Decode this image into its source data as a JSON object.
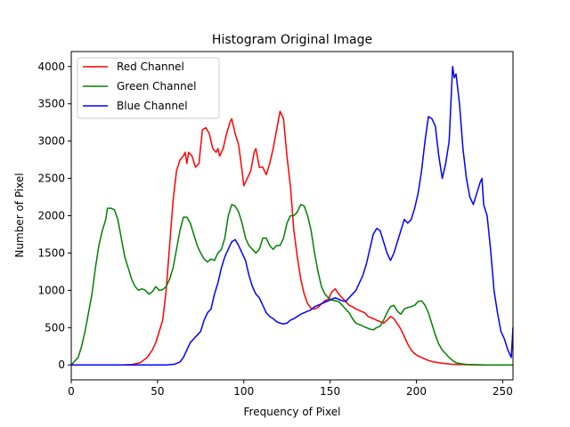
{
  "chart_data": {
    "type": "line",
    "title": "Histogram Original Image",
    "xlabel": "Frequency of Pixel",
    "ylabel": "Number of Pixel",
    "xlim": [
      0,
      256
    ],
    "ylim": [
      -200,
      4200
    ],
    "xticks": [
      0,
      50,
      100,
      150,
      200,
      250
    ],
    "yticks": [
      0,
      500,
      1000,
      1500,
      2000,
      2500,
      3000,
      3500,
      4000
    ],
    "grid": false,
    "legend_position": "top-left",
    "series": [
      {
        "name": "Red Channel",
        "color": "#ff0000",
        "points": [
          [
            0,
            0
          ],
          [
            10,
            0
          ],
          [
            20,
            0
          ],
          [
            30,
            0
          ],
          [
            35,
            5
          ],
          [
            40,
            30
          ],
          [
            44,
            100
          ],
          [
            47,
            200
          ],
          [
            49,
            300
          ],
          [
            51,
            450
          ],
          [
            53,
            600
          ],
          [
            55,
            1000
          ],
          [
            57,
            1600
          ],
          [
            59,
            2200
          ],
          [
            61,
            2600
          ],
          [
            63,
            2750
          ],
          [
            65,
            2800
          ],
          [
            66,
            2850
          ],
          [
            67,
            2700
          ],
          [
            68,
            2850
          ],
          [
            70,
            2800
          ],
          [
            72,
            2650
          ],
          [
            74,
            2700
          ],
          [
            76,
            3150
          ],
          [
            78,
            3180
          ],
          [
            80,
            3100
          ],
          [
            82,
            2900
          ],
          [
            84,
            2850
          ],
          [
            85,
            2900
          ],
          [
            86,
            2800
          ],
          [
            88,
            2900
          ],
          [
            90,
            3100
          ],
          [
            92,
            3250
          ],
          [
            93,
            3300
          ],
          [
            95,
            3100
          ],
          [
            97,
            2950
          ],
          [
            99,
            2600
          ],
          [
            100,
            2400
          ],
          [
            102,
            2500
          ],
          [
            104,
            2600
          ],
          [
            106,
            2850
          ],
          [
            107,
            2900
          ],
          [
            109,
            2650
          ],
          [
            111,
            2650
          ],
          [
            113,
            2550
          ],
          [
            115,
            2700
          ],
          [
            117,
            2900
          ],
          [
            119,
            3150
          ],
          [
            121,
            3400
          ],
          [
            123,
            3300
          ],
          [
            125,
            2800
          ],
          [
            127,
            2400
          ],
          [
            129,
            1800
          ],
          [
            131,
            1450
          ],
          [
            133,
            1150
          ],
          [
            135,
            950
          ],
          [
            137,
            820
          ],
          [
            139,
            760
          ],
          [
            141,
            750
          ],
          [
            143,
            770
          ],
          [
            145,
            820
          ],
          [
            147,
            860
          ],
          [
            149,
            880
          ],
          [
            151,
            980
          ],
          [
            153,
            1020
          ],
          [
            155,
            950
          ],
          [
            157,
            900
          ],
          [
            159,
            850
          ],
          [
            161,
            800
          ],
          [
            163,
            780
          ],
          [
            165,
            750
          ],
          [
            167,
            730
          ],
          [
            170,
            700
          ],
          [
            172,
            650
          ],
          [
            175,
            620
          ],
          [
            177,
            600
          ],
          [
            179,
            580
          ],
          [
            181,
            560
          ],
          [
            183,
            600
          ],
          [
            185,
            650
          ],
          [
            187,
            620
          ],
          [
            189,
            550
          ],
          [
            191,
            480
          ],
          [
            193,
            380
          ],
          [
            195,
            280
          ],
          [
            197,
            200
          ],
          [
            199,
            150
          ],
          [
            201,
            120
          ],
          [
            203,
            100
          ],
          [
            205,
            80
          ],
          [
            207,
            60
          ],
          [
            210,
            40
          ],
          [
            213,
            30
          ],
          [
            216,
            20
          ],
          [
            220,
            10
          ],
          [
            225,
            5
          ],
          [
            230,
            2
          ],
          [
            240,
            0
          ],
          [
            250,
            0
          ],
          [
            256,
            0
          ]
        ]
      },
      {
        "name": "Green Channel",
        "color": "#008000",
        "points": [
          [
            0,
            0
          ],
          [
            2,
            50
          ],
          [
            4,
            100
          ],
          [
            6,
            250
          ],
          [
            8,
            450
          ],
          [
            10,
            700
          ],
          [
            12,
            950
          ],
          [
            14,
            1300
          ],
          [
            16,
            1600
          ],
          [
            18,
            1800
          ],
          [
            20,
            1950
          ],
          [
            21,
            2100
          ],
          [
            23,
            2100
          ],
          [
            25,
            2080
          ],
          [
            27,
            1950
          ],
          [
            29,
            1700
          ],
          [
            31,
            1450
          ],
          [
            33,
            1300
          ],
          [
            35,
            1150
          ],
          [
            37,
            1050
          ],
          [
            39,
            1000
          ],
          [
            41,
            1020
          ],
          [
            43,
            1000
          ],
          [
            45,
            950
          ],
          [
            47,
            980
          ],
          [
            49,
            1050
          ],
          [
            51,
            1000
          ],
          [
            53,
            1010
          ],
          [
            55,
            1050
          ],
          [
            57,
            1150
          ],
          [
            59,
            1300
          ],
          [
            61,
            1550
          ],
          [
            63,
            1800
          ],
          [
            65,
            1980
          ],
          [
            67,
            1980
          ],
          [
            69,
            1900
          ],
          [
            71,
            1750
          ],
          [
            73,
            1600
          ],
          [
            75,
            1500
          ],
          [
            77,
            1420
          ],
          [
            79,
            1380
          ],
          [
            81,
            1420
          ],
          [
            83,
            1400
          ],
          [
            85,
            1500
          ],
          [
            87,
            1550
          ],
          [
            89,
            1700
          ],
          [
            91,
            2000
          ],
          [
            93,
            2150
          ],
          [
            95,
            2130
          ],
          [
            97,
            2050
          ],
          [
            99,
            1900
          ],
          [
            101,
            1700
          ],
          [
            103,
            1600
          ],
          [
            105,
            1550
          ],
          [
            107,
            1500
          ],
          [
            109,
            1550
          ],
          [
            111,
            1700
          ],
          [
            113,
            1700
          ],
          [
            115,
            1600
          ],
          [
            117,
            1550
          ],
          [
            119,
            1600
          ],
          [
            121,
            1600
          ],
          [
            123,
            1700
          ],
          [
            125,
            1900
          ],
          [
            127,
            2000
          ],
          [
            129,
            2000
          ],
          [
            131,
            2050
          ],
          [
            133,
            2150
          ],
          [
            135,
            2130
          ],
          [
            137,
            2000
          ],
          [
            139,
            1800
          ],
          [
            141,
            1500
          ],
          [
            143,
            1250
          ],
          [
            145,
            1050
          ],
          [
            147,
            950
          ],
          [
            149,
            900
          ],
          [
            151,
            870
          ],
          [
            153,
            860
          ],
          [
            155,
            850
          ],
          [
            157,
            800
          ],
          [
            159,
            750
          ],
          [
            161,
            700
          ],
          [
            163,
            620
          ],
          [
            165,
            560
          ],
          [
            167,
            540
          ],
          [
            169,
            520
          ],
          [
            171,
            500
          ],
          [
            173,
            480
          ],
          [
            175,
            470
          ],
          [
            177,
            500
          ],
          [
            179,
            520
          ],
          [
            181,
            600
          ],
          [
            183,
            700
          ],
          [
            185,
            780
          ],
          [
            187,
            800
          ],
          [
            189,
            720
          ],
          [
            191,
            680
          ],
          [
            193,
            750
          ],
          [
            195,
            770
          ],
          [
            197,
            780
          ],
          [
            199,
            800
          ],
          [
            201,
            850
          ],
          [
            203,
            860
          ],
          [
            205,
            800
          ],
          [
            207,
            700
          ],
          [
            209,
            550
          ],
          [
            211,
            400
          ],
          [
            213,
            280
          ],
          [
            215,
            200
          ],
          [
            217,
            150
          ],
          [
            219,
            100
          ],
          [
            221,
            60
          ],
          [
            223,
            30
          ],
          [
            226,
            15
          ],
          [
            230,
            5
          ],
          [
            240,
            0
          ],
          [
            256,
            0
          ]
        ]
      },
      {
        "name": "Blue Channel",
        "color": "#0000ff",
        "points": [
          [
            0,
            0
          ],
          [
            10,
            0
          ],
          [
            20,
            0
          ],
          [
            30,
            0
          ],
          [
            40,
            0
          ],
          [
            50,
            0
          ],
          [
            55,
            0
          ],
          [
            60,
            10
          ],
          [
            63,
            40
          ],
          [
            65,
            100
          ],
          [
            67,
            200
          ],
          [
            69,
            300
          ],
          [
            71,
            350
          ],
          [
            73,
            400
          ],
          [
            75,
            450
          ],
          [
            77,
            600
          ],
          [
            79,
            700
          ],
          [
            81,
            750
          ],
          [
            83,
            950
          ],
          [
            85,
            1100
          ],
          [
            87,
            1300
          ],
          [
            89,
            1450
          ],
          [
            91,
            1550
          ],
          [
            93,
            1650
          ],
          [
            95,
            1680
          ],
          [
            97,
            1600
          ],
          [
            99,
            1500
          ],
          [
            101,
            1400
          ],
          [
            103,
            1200
          ],
          [
            105,
            1050
          ],
          [
            107,
            950
          ],
          [
            109,
            900
          ],
          [
            111,
            800
          ],
          [
            113,
            700
          ],
          [
            115,
            650
          ],
          [
            117,
            620
          ],
          [
            119,
            580
          ],
          [
            121,
            560
          ],
          [
            123,
            550
          ],
          [
            125,
            560
          ],
          [
            127,
            600
          ],
          [
            129,
            620
          ],
          [
            131,
            650
          ],
          [
            133,
            680
          ],
          [
            135,
            700
          ],
          [
            137,
            720
          ],
          [
            139,
            740
          ],
          [
            141,
            780
          ],
          [
            143,
            800
          ],
          [
            145,
            820
          ],
          [
            147,
            840
          ],
          [
            149,
            860
          ],
          [
            151,
            880
          ],
          [
            153,
            900
          ],
          [
            155,
            880
          ],
          [
            157,
            860
          ],
          [
            159,
            850
          ],
          [
            161,
            900
          ],
          [
            163,
            950
          ],
          [
            165,
            1000
          ],
          [
            167,
            1100
          ],
          [
            169,
            1200
          ],
          [
            171,
            1350
          ],
          [
            173,
            1550
          ],
          [
            175,
            1750
          ],
          [
            177,
            1830
          ],
          [
            179,
            1800
          ],
          [
            181,
            1650
          ],
          [
            183,
            1500
          ],
          [
            185,
            1400
          ],
          [
            187,
            1500
          ],
          [
            189,
            1650
          ],
          [
            191,
            1800
          ],
          [
            193,
            1950
          ],
          [
            195,
            1900
          ],
          [
            197,
            1950
          ],
          [
            199,
            2100
          ],
          [
            201,
            2300
          ],
          [
            203,
            2600
          ],
          [
            205,
            3000
          ],
          [
            207,
            3330
          ],
          [
            209,
            3300
          ],
          [
            211,
            3200
          ],
          [
            213,
            2800
          ],
          [
            215,
            2500
          ],
          [
            217,
            2700
          ],
          [
            219,
            3000
          ],
          [
            221,
            4000
          ],
          [
            222,
            3850
          ],
          [
            223,
            3900
          ],
          [
            225,
            3500
          ],
          [
            227,
            2900
          ],
          [
            229,
            2500
          ],
          [
            231,
            2250
          ],
          [
            233,
            2150
          ],
          [
            235,
            2300
          ],
          [
            237,
            2450
          ],
          [
            238,
            2500
          ],
          [
            239,
            2150
          ],
          [
            241,
            2000
          ],
          [
            243,
            1550
          ],
          [
            245,
            1000
          ],
          [
            247,
            700
          ],
          [
            249,
            450
          ],
          [
            251,
            350
          ],
          [
            253,
            200
          ],
          [
            255,
            100
          ],
          [
            256,
            500
          ]
        ]
      }
    ]
  }
}
